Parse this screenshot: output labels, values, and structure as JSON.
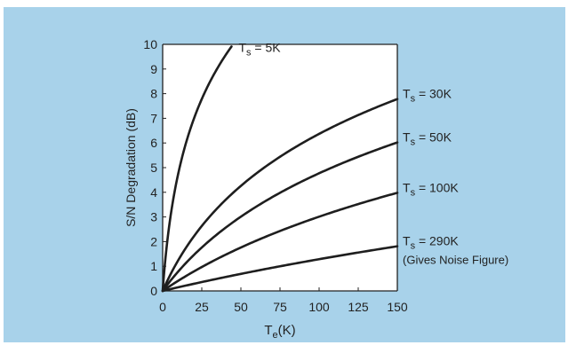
{
  "colors": {
    "background": "#a8d2ea",
    "plot_area": "#ffffff",
    "curve": "#1e1e1e",
    "frame": "#222222"
  },
  "chart_data": {
    "type": "line",
    "xlabel": "T",
    "xlabel_sub": "e",
    "xlabel_unit": "(K)",
    "ylabel": "S/N Degradation (dB)",
    "xlim": [
      0,
      150
    ],
    "ylim": [
      0,
      10
    ],
    "x_ticks": [
      0,
      25,
      50,
      75,
      100,
      125,
      150
    ],
    "y_ticks": [
      0,
      1,
      2,
      3,
      4,
      5,
      6,
      7,
      8,
      9,
      10
    ],
    "grid": false,
    "series": [
      {
        "name": "5K",
        "label_prefix": "T",
        "label_sub": "s",
        "label_suffix": " = 5K",
        "Ts": 5,
        "x": [
          0,
          5,
          10,
          20,
          30,
          40,
          44
        ],
        "y": [
          0,
          3.01,
          4.77,
          6.99,
          8.45,
          9.54,
          9.91
        ]
      },
      {
        "name": "30K",
        "label_prefix": "T",
        "label_sub": "s",
        "label_suffix": " = 30K",
        "Ts": 30,
        "x": [
          0,
          25,
          50,
          75,
          100,
          125,
          150
        ],
        "y": [
          0,
          2.63,
          4.26,
          5.44,
          6.37,
          7.13,
          7.78
        ]
      },
      {
        "name": "50K",
        "label_prefix": "T",
        "label_sub": "s",
        "label_suffix": " = 50K",
        "Ts": 50,
        "x": [
          0,
          25,
          50,
          75,
          100,
          125,
          150
        ],
        "y": [
          0,
          1.76,
          3.01,
          3.98,
          4.77,
          5.44,
          6.02
        ]
      },
      {
        "name": "100K",
        "label_prefix": "T",
        "label_sub": "s",
        "label_suffix": " = 100K",
        "Ts": 100,
        "x": [
          0,
          25,
          50,
          75,
          100,
          125,
          150
        ],
        "y": [
          0,
          0.97,
          1.76,
          2.43,
          3.01,
          3.52,
          3.98
        ]
      },
      {
        "name": "290K",
        "label_prefix": "T",
        "label_sub": "s",
        "label_suffix": " = 290K",
        "label_note": "(Gives Noise Figure)",
        "Ts": 290,
        "x": [
          0,
          25,
          50,
          75,
          100,
          125,
          150
        ],
        "y": [
          0,
          0.36,
          0.69,
          1.0,
          1.29,
          1.56,
          1.82
        ]
      }
    ]
  }
}
